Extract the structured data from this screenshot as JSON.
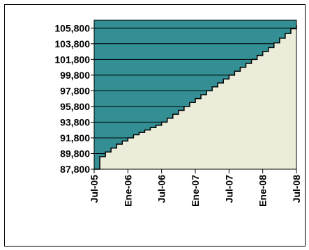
{
  "chart_data": {
    "type": "area",
    "title": "",
    "xlabel": "",
    "ylabel": "",
    "ylim": [
      87800,
      106800
    ],
    "y_ticks": [
      "105,800",
      "103,800",
      "101,800",
      "99,800",
      "97,800",
      "95,800",
      "93,800",
      "91,800",
      "89,800",
      "87,800"
    ],
    "x_ticks": [
      "Jul-05",
      "Ene-06",
      "Jul-06",
      "Ene-07",
      "Jul-07",
      "Ene-08",
      "Jul-08"
    ],
    "grid": true,
    "legend": "none",
    "colors": {
      "upper_fill": "#338f94",
      "lower_fill": "#ebecd9",
      "step_line": "#000000",
      "gridline": "#000000",
      "border": "#000000"
    },
    "series": [
      {
        "step": true,
        "x": [
          "Jul-05",
          "Ago-05",
          "Sep-05",
          "Oct-05",
          "Nov-05",
          "Dic-05",
          "Ene-06",
          "Feb-06",
          "Mar-06",
          "Abr-06",
          "May-06",
          "Jun-06",
          "Jul-06",
          "Ago-06",
          "Sep-06",
          "Oct-06",
          "Nov-06",
          "Dic-06",
          "Ene-07",
          "Feb-07",
          "Mar-07",
          "Abr-07",
          "May-07",
          "Jun-07",
          "Jul-07",
          "Ago-07",
          "Sep-07",
          "Oct-07",
          "Nov-07",
          "Dic-07",
          "Ene-08",
          "Feb-08",
          "Mar-08",
          "Abr-08",
          "May-08",
          "Jun-08",
          "Jul-08"
        ],
        "values": [
          87800,
          89400,
          90000,
          90500,
          91000,
          91400,
          91800,
          92200,
          92500,
          92800,
          93100,
          93400,
          93800,
          94300,
          94800,
          95300,
          95800,
          96300,
          96800,
          97300,
          97800,
          98300,
          98800,
          99300,
          99800,
          100300,
          100800,
          101300,
          101800,
          102300,
          102800,
          103300,
          103900,
          104500,
          105100,
          105700,
          106200
        ]
      }
    ]
  }
}
